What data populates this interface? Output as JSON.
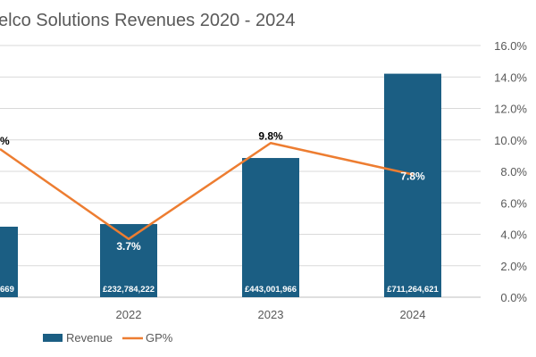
{
  "chart_data": {
    "type": "bar+line",
    "title": "elco Solutions Revenues 2020 - 2024",
    "categories": [
      "",
      "2022",
      "2023",
      "2024"
    ],
    "series": [
      {
        "name": "Revenue",
        "kind": "bar",
        "color": "#1b5e83",
        "values": [
          null,
          232784222,
          443001966,
          711264621
        ],
        "value_labels": [
          "669",
          "£232,784,222",
          "£443,001,966",
          "£711,264,621"
        ]
      },
      {
        "name": "GP%",
        "kind": "line",
        "color": "#ed7d31",
        "values": [
          null,
          3.7,
          9.8,
          7.8
        ],
        "value_labels": [
          "%",
          "3.7%",
          "9.8%",
          "7.8%"
        ]
      }
    ],
    "secondary_axis": {
      "ylim": [
        0,
        16
      ],
      "ticks": [
        "0.0%",
        "2.0%",
        "4.0%",
        "6.0%",
        "8.0%",
        "10.0%",
        "12.0%",
        "14.0%",
        "16.0%"
      ]
    },
    "grid": true,
    "legend": "bottom"
  }
}
